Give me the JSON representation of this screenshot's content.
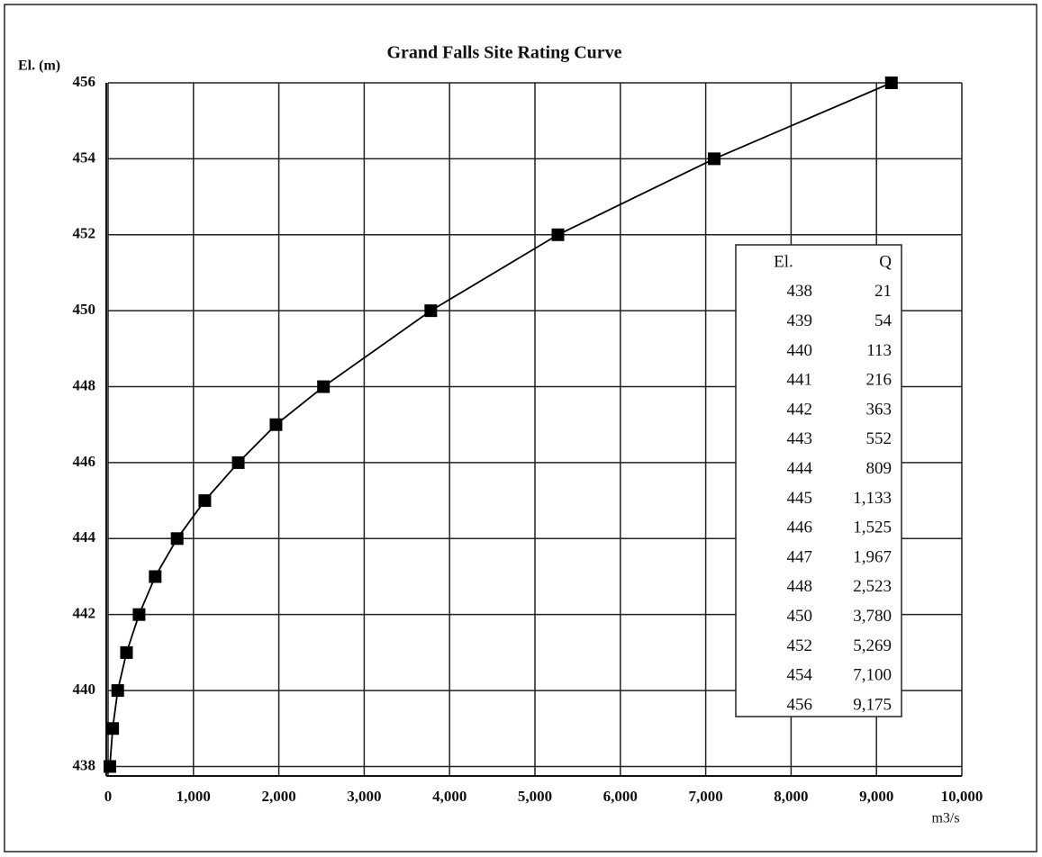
{
  "chart_data": {
    "type": "line",
    "title": "Grand Falls Site Rating Curve",
    "y_label": "El. (m)",
    "x_label": "m3/s",
    "series": [
      {
        "name": "Rating curve",
        "color": "#000000",
        "x": [
          21,
          54,
          113,
          216,
          363,
          552,
          809,
          1133,
          1525,
          1967,
          2523,
          3780,
          5269,
          7100,
          9175
        ],
        "values": [
          438,
          439,
          440,
          441,
          442,
          443,
          444,
          445,
          446,
          447,
          448,
          450,
          452,
          454,
          456
        ]
      }
    ],
    "xlim": [
      0,
      10000
    ],
    "xticks": [
      0,
      {
        "value": 1000,
        "label": "1,000"
      },
      {
        "value": 2000,
        "label": "2,000"
      },
      {
        "value": 3000,
        "label": "3,000"
      },
      {
        "value": 4000,
        "label": "4,000"
      },
      {
        "value": 5000,
        "label": "5,000"
      },
      {
        "value": 6000,
        "label": "6,000"
      },
      {
        "value": 7000,
        "label": "7,000"
      },
      {
        "value": 8000,
        "label": "8,000"
      },
      {
        "value": 9000,
        "label": "9,000"
      },
      {
        "value": 10000,
        "label": "10,000"
      }
    ],
    "ylim": [
      437.75,
      456
    ],
    "yticks": [
      438,
      440,
      442,
      444,
      446,
      448,
      450,
      452,
      454,
      456
    ],
    "grid": true,
    "table": {
      "columns": [
        "El.",
        "Q"
      ],
      "rows": [
        [
          "438",
          "21"
        ],
        [
          "439",
          "54"
        ],
        [
          "440",
          "113"
        ],
        [
          "441",
          "216"
        ],
        [
          "442",
          "363"
        ],
        [
          "443",
          "552"
        ],
        [
          "444",
          "809"
        ],
        [
          "445",
          "1,133"
        ],
        [
          "446",
          "1,525"
        ],
        [
          "447",
          "1,967"
        ],
        [
          "448",
          "2,523"
        ],
        [
          "450",
          "3,780"
        ],
        [
          "452",
          "5,269"
        ],
        [
          "454",
          "7,100"
        ],
        [
          "456",
          "9,175"
        ]
      ]
    }
  }
}
